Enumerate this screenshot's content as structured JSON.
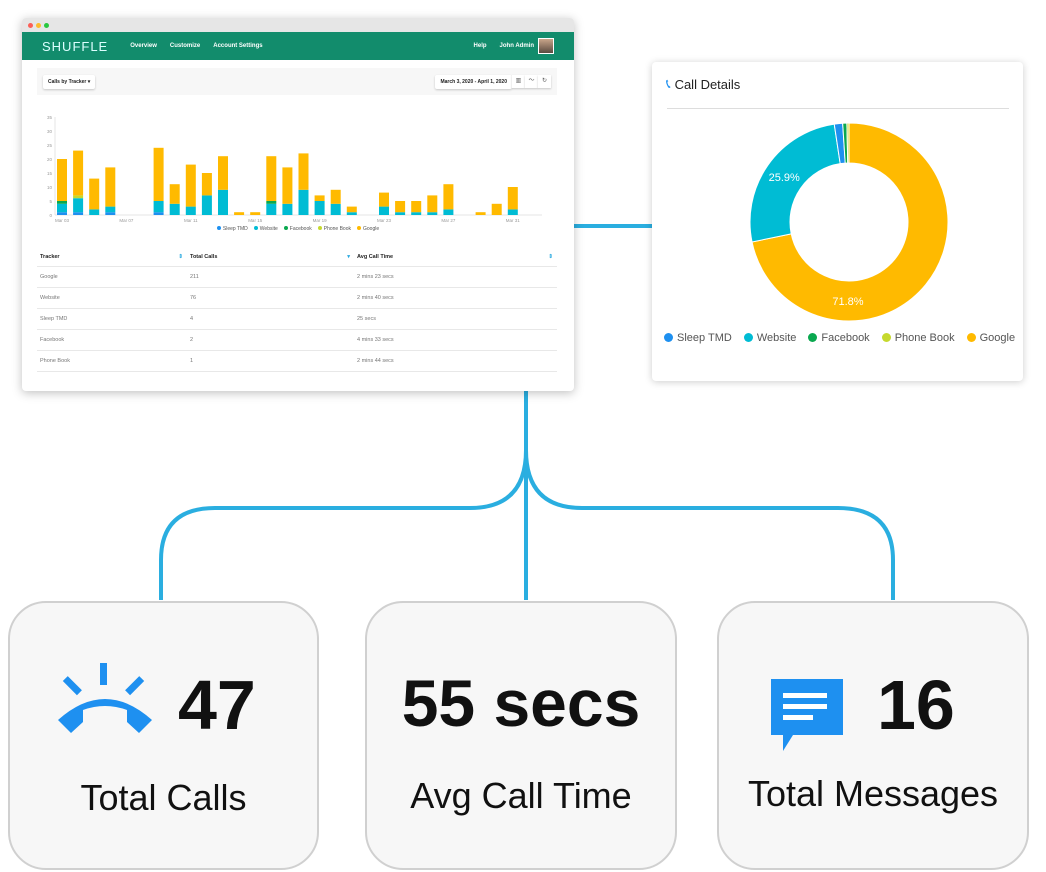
{
  "dashboard": {
    "logo": "SHUFFLE",
    "nav": [
      "Overview",
      "Customize",
      "Account Settings"
    ],
    "help": "Help",
    "user": "John Admin",
    "report_select": "Calls by Tracker ▾",
    "date_range": "March 3, 2020 - April 1, 2020",
    "icons": [
      "bar-chart-icon",
      "line-chart-icon",
      "refresh-icon"
    ],
    "table": {
      "headers": [
        "Tracker",
        "Total Calls",
        "Avg Call Time"
      ],
      "rows": [
        [
          "Google",
          "211",
          "2 mins 23 secs"
        ],
        [
          "Website",
          "76",
          "2 mins 40 secs"
        ],
        [
          "Sleep TMD",
          "4",
          "25 secs"
        ],
        [
          "Facebook",
          "2",
          "4 mins 33 secs"
        ],
        [
          "Phone Book",
          "1",
          "2 mins 44 secs"
        ]
      ]
    }
  },
  "colors": {
    "Sleep TMD": "#1e90f0",
    "Website": "#00bcd4",
    "Facebook": "#0aa84f",
    "Phone Book": "#c6d92e",
    "Google": "#ffba00",
    "header": "#128c6c",
    "connector": "#2aaee0"
  },
  "chart_data": [
    {
      "type": "bar",
      "stacked": true,
      "categories": [
        "Mar 03",
        "Mar 04",
        "Mar 05",
        "Mar 06",
        "Mar 07",
        "Mar 08",
        "Mar 09",
        "Mar 10",
        "Mar 11",
        "Mar 12",
        "Mar 13",
        "Mar 14",
        "Mar 15",
        "Mar 16",
        "Mar 17",
        "Mar 18",
        "Mar 19",
        "Mar 20",
        "Mar 21",
        "Mar 22",
        "Mar 23",
        "Mar 24",
        "Mar 25",
        "Mar 26",
        "Mar 27",
        "Mar 28",
        "Mar 29",
        "Mar 30",
        "Mar 31",
        "Apr 01"
      ],
      "tick_labels": [
        "Mar 03",
        "Mar 07",
        "Mar 11",
        "Mar 15",
        "Mar 19",
        "Mar 23",
        "Mar 27",
        "Mar 31"
      ],
      "yticks": [
        "0",
        "5",
        "10",
        "15",
        "20",
        "25",
        "30",
        "35"
      ],
      "ylim": [
        0,
        35
      ],
      "legend": "bottom",
      "series": [
        {
          "name": "Sleep TMD",
          "values": [
            1,
            1,
            0,
            1,
            0,
            0,
            1,
            0,
            0,
            0,
            0,
            0,
            0,
            0,
            0,
            0,
            0,
            0,
            0,
            0,
            0,
            0,
            0,
            0,
            0,
            0,
            0,
            0,
            0,
            0
          ]
        },
        {
          "name": "Website",
          "values": [
            3,
            5,
            2,
            2,
            0,
            0,
            4,
            4,
            3,
            7,
            9,
            0,
            0,
            4,
            4,
            9,
            5,
            4,
            1,
            0,
            3,
            1,
            1,
            1,
            2,
            0,
            0,
            0,
            2,
            0
          ]
        },
        {
          "name": "Facebook",
          "values": [
            1,
            0,
            0,
            0,
            0,
            0,
            0,
            0,
            0,
            0,
            0,
            0,
            0,
            1,
            0,
            0,
            0,
            0,
            0,
            0,
            0,
            0,
            0,
            0,
            0,
            0,
            0,
            0,
            0,
            0
          ]
        },
        {
          "name": "Phone Book",
          "values": [
            0,
            1,
            0,
            0,
            0,
            0,
            0,
            0,
            0,
            0,
            0,
            0,
            0,
            0,
            0,
            0,
            0,
            0,
            0,
            0,
            0,
            0,
            0,
            0,
            0,
            0,
            0,
            0,
            0,
            0
          ]
        },
        {
          "name": "Google",
          "values": [
            15,
            16,
            11,
            14,
            0,
            0,
            19,
            7,
            15,
            8,
            12,
            1,
            1,
            16,
            13,
            13,
            2,
            5,
            2,
            0,
            5,
            4,
            4,
            6,
            9,
            0,
            1,
            4,
            8,
            0
          ]
        }
      ]
    },
    {
      "type": "pie",
      "donut": true,
      "title": "Call Details",
      "legend": "bottom",
      "labels": [
        "Google",
        "Website",
        "Sleep TMD",
        "Facebook",
        "Phone Book"
      ],
      "values": [
        211,
        76,
        4,
        2,
        1
      ],
      "data_labels": [
        "71.8%",
        "25.9%",
        "",
        "",
        ""
      ],
      "legend_order": [
        "Sleep TMD",
        "Website",
        "Facebook",
        "Phone Book",
        "Google"
      ]
    }
  ],
  "stats": [
    {
      "value": "47",
      "label": "Total Calls",
      "icon": "phone-ringing-icon"
    },
    {
      "value": "55 secs",
      "label": "Avg Call Time"
    },
    {
      "value": "16",
      "label": "Total Messages",
      "icon": "message-icon"
    }
  ]
}
